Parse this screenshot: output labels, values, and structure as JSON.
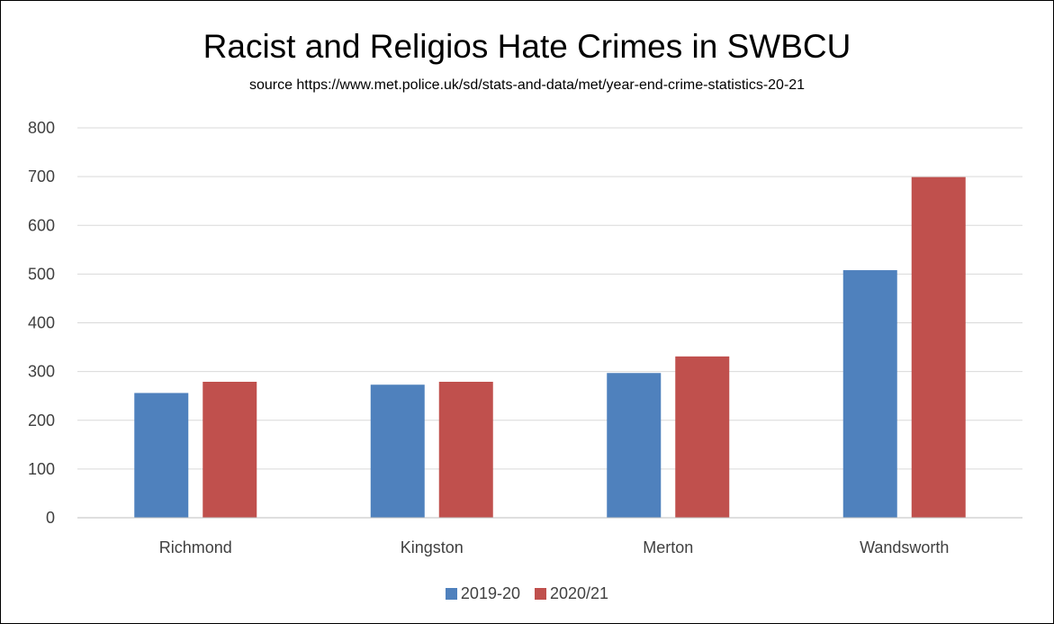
{
  "chart_data": {
    "type": "bar",
    "title": "Racist and Religios Hate Crimes in SWBCU",
    "subtitle": "source https://www.met.police.uk/sd/stats-and-data/met/year-end-crime-statistics-20-21",
    "categories": [
      "Richmond",
      "Kingston",
      "Merton",
      "Wandsworth"
    ],
    "series": [
      {
        "name": "2019-20",
        "values": [
          256,
          273,
          297,
          508
        ],
        "color": "#4F81BD"
      },
      {
        "name": "2020/21",
        "values": [
          279,
          279,
          331,
          699
        ],
        "color": "#C0504D"
      }
    ],
    "ylim": [
      0,
      800
    ],
    "yticks": [
      "0",
      "100",
      "200",
      "300",
      "400",
      "500",
      "600",
      "700",
      "800"
    ],
    "grid": true,
    "legend_position": "bottom"
  }
}
